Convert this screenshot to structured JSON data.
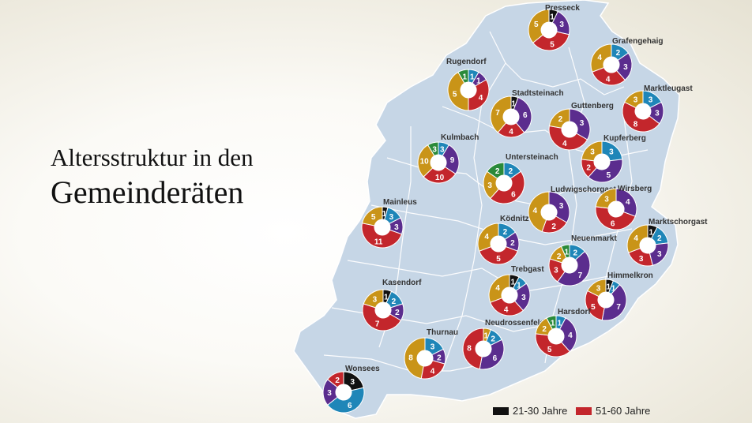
{
  "title": {
    "line1": "Altersstruktur in den",
    "line2": "Gemeinderäten"
  },
  "colors": {
    "21-30": "#111111",
    "31-40": "#2a8a3a",
    "41-50": "#1f86b8",
    "51-60": "#c3262c",
    "61-70": "#5b2d8e",
    "71-80": "#c99418",
    "map_fill": "#c6d6e6",
    "map_border": "#ffffff"
  },
  "legend": [
    {
      "key": "21-30",
      "label": "21-30 Jahre"
    },
    {
      "key": "51-60",
      "label": "51-60 Jahre"
    }
  ],
  "municipalities": [
    {
      "name": "Presseck",
      "segments": [
        {
          "k": "21-30",
          "v": 1
        },
        {
          "k": "61-70",
          "v": 3
        },
        {
          "k": "51-60",
          "v": 5
        },
        {
          "k": "71-80",
          "v": 5
        }
      ]
    },
    {
      "name": "Grafengehaig",
      "segments": [
        {
          "k": "41-50",
          "v": 2
        },
        {
          "k": "61-70",
          "v": 3
        },
        {
          "k": "51-60",
          "v": 4
        },
        {
          "k": "71-80",
          "v": 4
        }
      ]
    },
    {
      "name": "Rugendorf",
      "segments": [
        {
          "k": "41-50",
          "v": 1
        },
        {
          "k": "61-70",
          "v": 1
        },
        {
          "k": "51-60",
          "v": 4
        },
        {
          "k": "71-80",
          "v": 5
        },
        {
          "k": "31-40",
          "v": 1
        }
      ]
    },
    {
      "name": "Stadtsteinach",
      "segments": [
        {
          "k": "21-30",
          "v": 1
        },
        {
          "k": "61-70",
          "v": 6
        },
        {
          "k": "51-60",
          "v": 4
        },
        {
          "k": "71-80",
          "v": 7
        }
      ]
    },
    {
      "name": "Marktleugast",
      "segments": [
        {
          "k": "41-50",
          "v": 3
        },
        {
          "k": "61-70",
          "v": 3
        },
        {
          "k": "51-60",
          "v": 8
        },
        {
          "k": "71-80",
          "v": 3
        }
      ]
    },
    {
      "name": "Guttenberg",
      "segments": [
        {
          "k": "61-70",
          "v": 3
        },
        {
          "k": "51-60",
          "v": 4
        },
        {
          "k": "71-80",
          "v": 2
        }
      ]
    },
    {
      "name": "Kulmbach",
      "segments": [
        {
          "k": "41-50",
          "v": 3
        },
        {
          "k": "61-70",
          "v": 9
        },
        {
          "k": "51-60",
          "v": 10
        },
        {
          "k": "71-80",
          "v": 10
        },
        {
          "k": "31-40",
          "v": 3
        }
      ]
    },
    {
      "name": "Kupferberg",
      "segments": [
        {
          "k": "41-50",
          "v": 3
        },
        {
          "k": "61-70",
          "v": 5
        },
        {
          "k": "51-60",
          "v": 2
        },
        {
          "k": "71-80",
          "v": 3
        }
      ]
    },
    {
      "name": "Untersteinach",
      "segments": [
        {
          "k": "41-50",
          "v": 2
        },
        {
          "k": "51-60",
          "v": 6
        },
        {
          "k": "71-80",
          "v": 3
        },
        {
          "k": "31-40",
          "v": 2
        }
      ]
    },
    {
      "name": "Ludwigschorgast",
      "segments": [
        {
          "k": "61-70",
          "v": 3
        },
        {
          "k": "51-60",
          "v": 2
        },
        {
          "k": "71-80",
          "v": 4
        }
      ]
    },
    {
      "name": "Wirsberg",
      "segments": [
        {
          "k": "61-70",
          "v": 4
        },
        {
          "k": "51-60",
          "v": 6
        },
        {
          "k": "71-80",
          "v": 3
        }
      ]
    },
    {
      "name": "Mainleus",
      "segments": [
        {
          "k": "21-30",
          "v": 1
        },
        {
          "k": "41-50",
          "v": 3
        },
        {
          "k": "61-70",
          "v": 3
        },
        {
          "k": "51-60",
          "v": 11
        },
        {
          "k": "71-80",
          "v": 5
        }
      ]
    },
    {
      "name": "Marktschorgast",
      "segments": [
        {
          "k": "21-30",
          "v": 1
        },
        {
          "k": "41-50",
          "v": 2
        },
        {
          "k": "61-70",
          "v": 3
        },
        {
          "k": "51-60",
          "v": 3
        },
        {
          "k": "71-80",
          "v": 4
        }
      ]
    },
    {
      "name": "Ködnitz",
      "segments": [
        {
          "k": "41-50",
          "v": 2
        },
        {
          "k": "61-70",
          "v": 2
        },
        {
          "k": "51-60",
          "v": 5
        },
        {
          "k": "71-80",
          "v": 4
        }
      ]
    },
    {
      "name": "Neuenmarkt",
      "segments": [
        {
          "k": "41-50",
          "v": 2
        },
        {
          "k": "61-70",
          "v": 7
        },
        {
          "k": "51-60",
          "v": 3
        },
        {
          "k": "71-80",
          "v": 2
        },
        {
          "k": "31-40",
          "v": 1
        }
      ]
    },
    {
      "name": "Kasendorf",
      "segments": [
        {
          "k": "21-30",
          "v": 1
        },
        {
          "k": "41-50",
          "v": 2
        },
        {
          "k": "61-70",
          "v": 2
        },
        {
          "k": "51-60",
          "v": 7
        },
        {
          "k": "71-80",
          "v": 3
        }
      ]
    },
    {
      "name": "Trebgast",
      "segments": [
        {
          "k": "21-30",
          "v": 1
        },
        {
          "k": "41-50",
          "v": 1
        },
        {
          "k": "61-70",
          "v": 3
        },
        {
          "k": "51-60",
          "v": 4
        },
        {
          "k": "71-80",
          "v": 4
        }
      ]
    },
    {
      "name": "Himmelkron",
      "segments": [
        {
          "k": "21-30",
          "v": 1
        },
        {
          "k": "41-50",
          "v": 1
        },
        {
          "k": "61-70",
          "v": 7
        },
        {
          "k": "51-60",
          "v": 5
        },
        {
          "k": "71-80",
          "v": 3
        }
      ]
    },
    {
      "name": "Neudrossenfeld",
      "segments": [
        {
          "k": "71-80",
          "v": 1
        },
        {
          "k": "41-50",
          "v": 2
        },
        {
          "k": "61-70",
          "v": 6
        },
        {
          "k": "51-60",
          "v": 8
        }
      ]
    },
    {
      "name": "Harsdorf",
      "segments": [
        {
          "k": "41-50",
          "v": 1
        },
        {
          "k": "61-70",
          "v": 4
        },
        {
          "k": "51-60",
          "v": 5
        },
        {
          "k": "71-80",
          "v": 2
        },
        {
          "k": "31-40",
          "v": 1
        }
      ]
    },
    {
      "name": "Thurnau",
      "segments": [
        {
          "k": "41-50",
          "v": 3
        },
        {
          "k": "61-70",
          "v": 2
        },
        {
          "k": "51-60",
          "v": 4
        },
        {
          "k": "71-80",
          "v": 8
        }
      ]
    },
    {
      "name": "Wonsees",
      "segments": [
        {
          "k": "21-30",
          "v": 3
        },
        {
          "k": "41-50",
          "v": 6
        },
        {
          "k": "61-70",
          "v": 3
        },
        {
          "k": "51-60",
          "v": 2
        }
      ]
    }
  ]
}
